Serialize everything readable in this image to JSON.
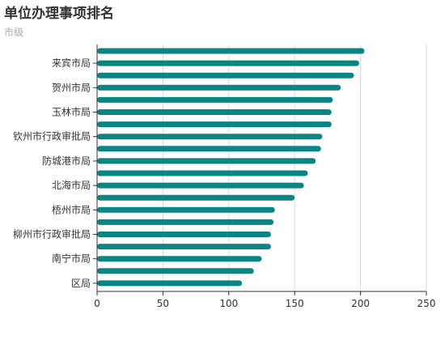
{
  "title": "单位办理事项排名",
  "subtitle": "市级",
  "colors": {
    "bar": "#0b8583",
    "grid": "#d9d9d9",
    "axis": "#333333",
    "title": "#333333",
    "subtitle": "#aaaaaa"
  },
  "chart_data": {
    "type": "bar",
    "orientation": "horizontal",
    "title": "单位办理事项排名",
    "subtitle": "市级",
    "xlabel": "",
    "ylabel": "",
    "xlim": [
      0,
      250
    ],
    "x_ticks": [
      0,
      50,
      100,
      150,
      200,
      250
    ],
    "grid": "vertical",
    "category_labels": [
      {
        "row": 2,
        "label": "来宾市局"
      },
      {
        "row": 4,
        "label": "贺州市局"
      },
      {
        "row": 6,
        "label": "玉林市局"
      },
      {
        "row": 8,
        "label": "钦州市行政审批局"
      },
      {
        "row": 10,
        "label": "防城港市局"
      },
      {
        "row": 12,
        "label": "北海市局"
      },
      {
        "row": 14,
        "label": "梧州市局"
      },
      {
        "row": 16,
        "label": "柳州市行政审批局"
      },
      {
        "row": 18,
        "label": "南宁市局"
      },
      {
        "row": 20,
        "label": "区局"
      }
    ],
    "values": [
      203,
      199,
      195,
      185,
      179,
      178,
      178,
      171,
      170,
      166,
      160,
      157,
      150,
      135,
      134,
      132,
      132,
      125,
      119,
      110
    ]
  }
}
